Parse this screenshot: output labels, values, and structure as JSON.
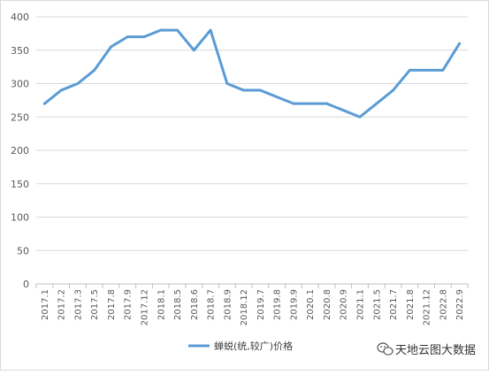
{
  "chart_data": {
    "type": "line",
    "categories": [
      "2017.1",
      "2017.2",
      "2017.3",
      "2017.5",
      "2017.8",
      "2017.9",
      "2017.12",
      "2018.1",
      "2018.5",
      "2018.6",
      "2018.7",
      "2018.9",
      "2018.12",
      "2019.7",
      "2019.8",
      "2019.9",
      "2020.1",
      "2020.8",
      "2020.9",
      "2021.1",
      "2021.5",
      "2021.7",
      "2021.8",
      "2021.12",
      "2022.8",
      "2022.9"
    ],
    "series": [
      {
        "name": "蝉蜕(统,较广)价格",
        "color": "#5B9BD5",
        "values": [
          270,
          290,
          300,
          320,
          355,
          370,
          370,
          380,
          380,
          350,
          380,
          300,
          290,
          290,
          280,
          270,
          270,
          270,
          260,
          250,
          270,
          290,
          320,
          320,
          320,
          360
        ]
      }
    ],
    "ylim": [
      0,
      400
    ],
    "yticks": [
      0,
      50,
      100,
      150,
      200,
      250,
      300,
      350,
      400
    ],
    "grid": true,
    "legend_position": "bottom"
  },
  "watermark": {
    "text": "天地云图大数据",
    "icon": "wechat-icon"
  }
}
